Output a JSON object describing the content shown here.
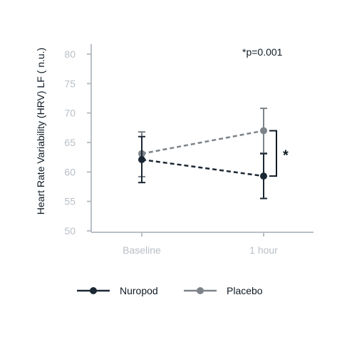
{
  "chart_data": {
    "type": "line",
    "categories": [
      "Baseline",
      "1 hour"
    ],
    "ylabel": "Heart Rate Variability (HRV) LF ( n.u.)",
    "xlabel": "",
    "ylim": [
      50,
      80
    ],
    "yticks": [
      50,
      55,
      60,
      65,
      70,
      75,
      80
    ],
    "grid": false,
    "legend": "bottom",
    "series": [
      {
        "name": "Nuropod",
        "color": "#1b2733",
        "line_style": "dashed",
        "values": [
          62.1,
          59.3
        ],
        "error_low": [
          58.2,
          55.5
        ],
        "error_high": [
          66.0,
          63.1
        ]
      },
      {
        "name": "Placebo",
        "color": "#7d8389",
        "line_style": "dashed",
        "values": [
          63.1,
          67.0
        ],
        "error_low": [
          59.2,
          63.2
        ],
        "error_high": [
          66.8,
          70.8
        ]
      }
    ],
    "annotations": {
      "pvalue": "*p=0.001",
      "significance": "*"
    }
  }
}
